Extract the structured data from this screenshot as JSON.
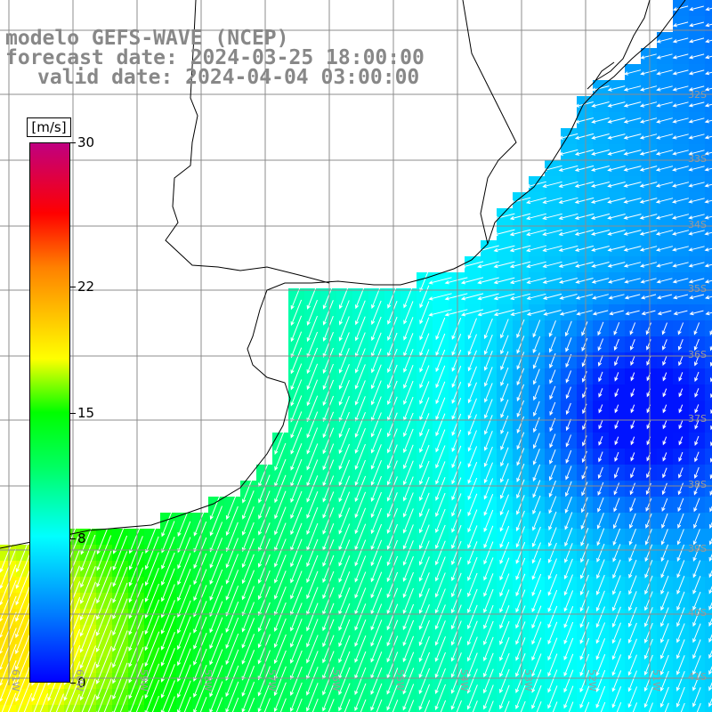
{
  "header": {
    "model_line": "modelo GEFS-WAVE (NCEP)",
    "forecast_line": "forecast date: 2024-03-25 18:00:00",
    "valid_line": "valid date: 2024-04-04 03:00:00"
  },
  "legend": {
    "unit": "[m/s]",
    "min": 0,
    "max": 30,
    "tick_values": [
      0,
      8,
      15,
      22,
      30
    ],
    "tick_labels": [
      "0",
      "8",
      "15",
      "22",
      "30"
    ],
    "colors": [
      "#0000ff",
      "#0080ff",
      "#00ffff",
      "#00ff60",
      "#00ff00",
      "#ffff00",
      "#ff8000",
      "#ff0000",
      "#c00080"
    ]
  },
  "map": {
    "lon_range": [
      -61,
      -50
    ],
    "lat_range": [
      -41,
      -29
    ],
    "lat_labels": [
      "32S",
      "33S",
      "34S",
      "35S",
      "36S",
      "37S",
      "38S",
      "39S",
      "40S",
      "41S"
    ],
    "lon_labels": [
      "61W",
      "60W",
      "59W",
      "58W",
      "57W",
      "56W",
      "55W",
      "54W",
      "53W",
      "52W",
      "51W"
    ],
    "land_color": "#ffffff",
    "grid_color": "#8c8c8c",
    "arrow_color": "#ffffff",
    "wind_direction": "from-northeast"
  }
}
